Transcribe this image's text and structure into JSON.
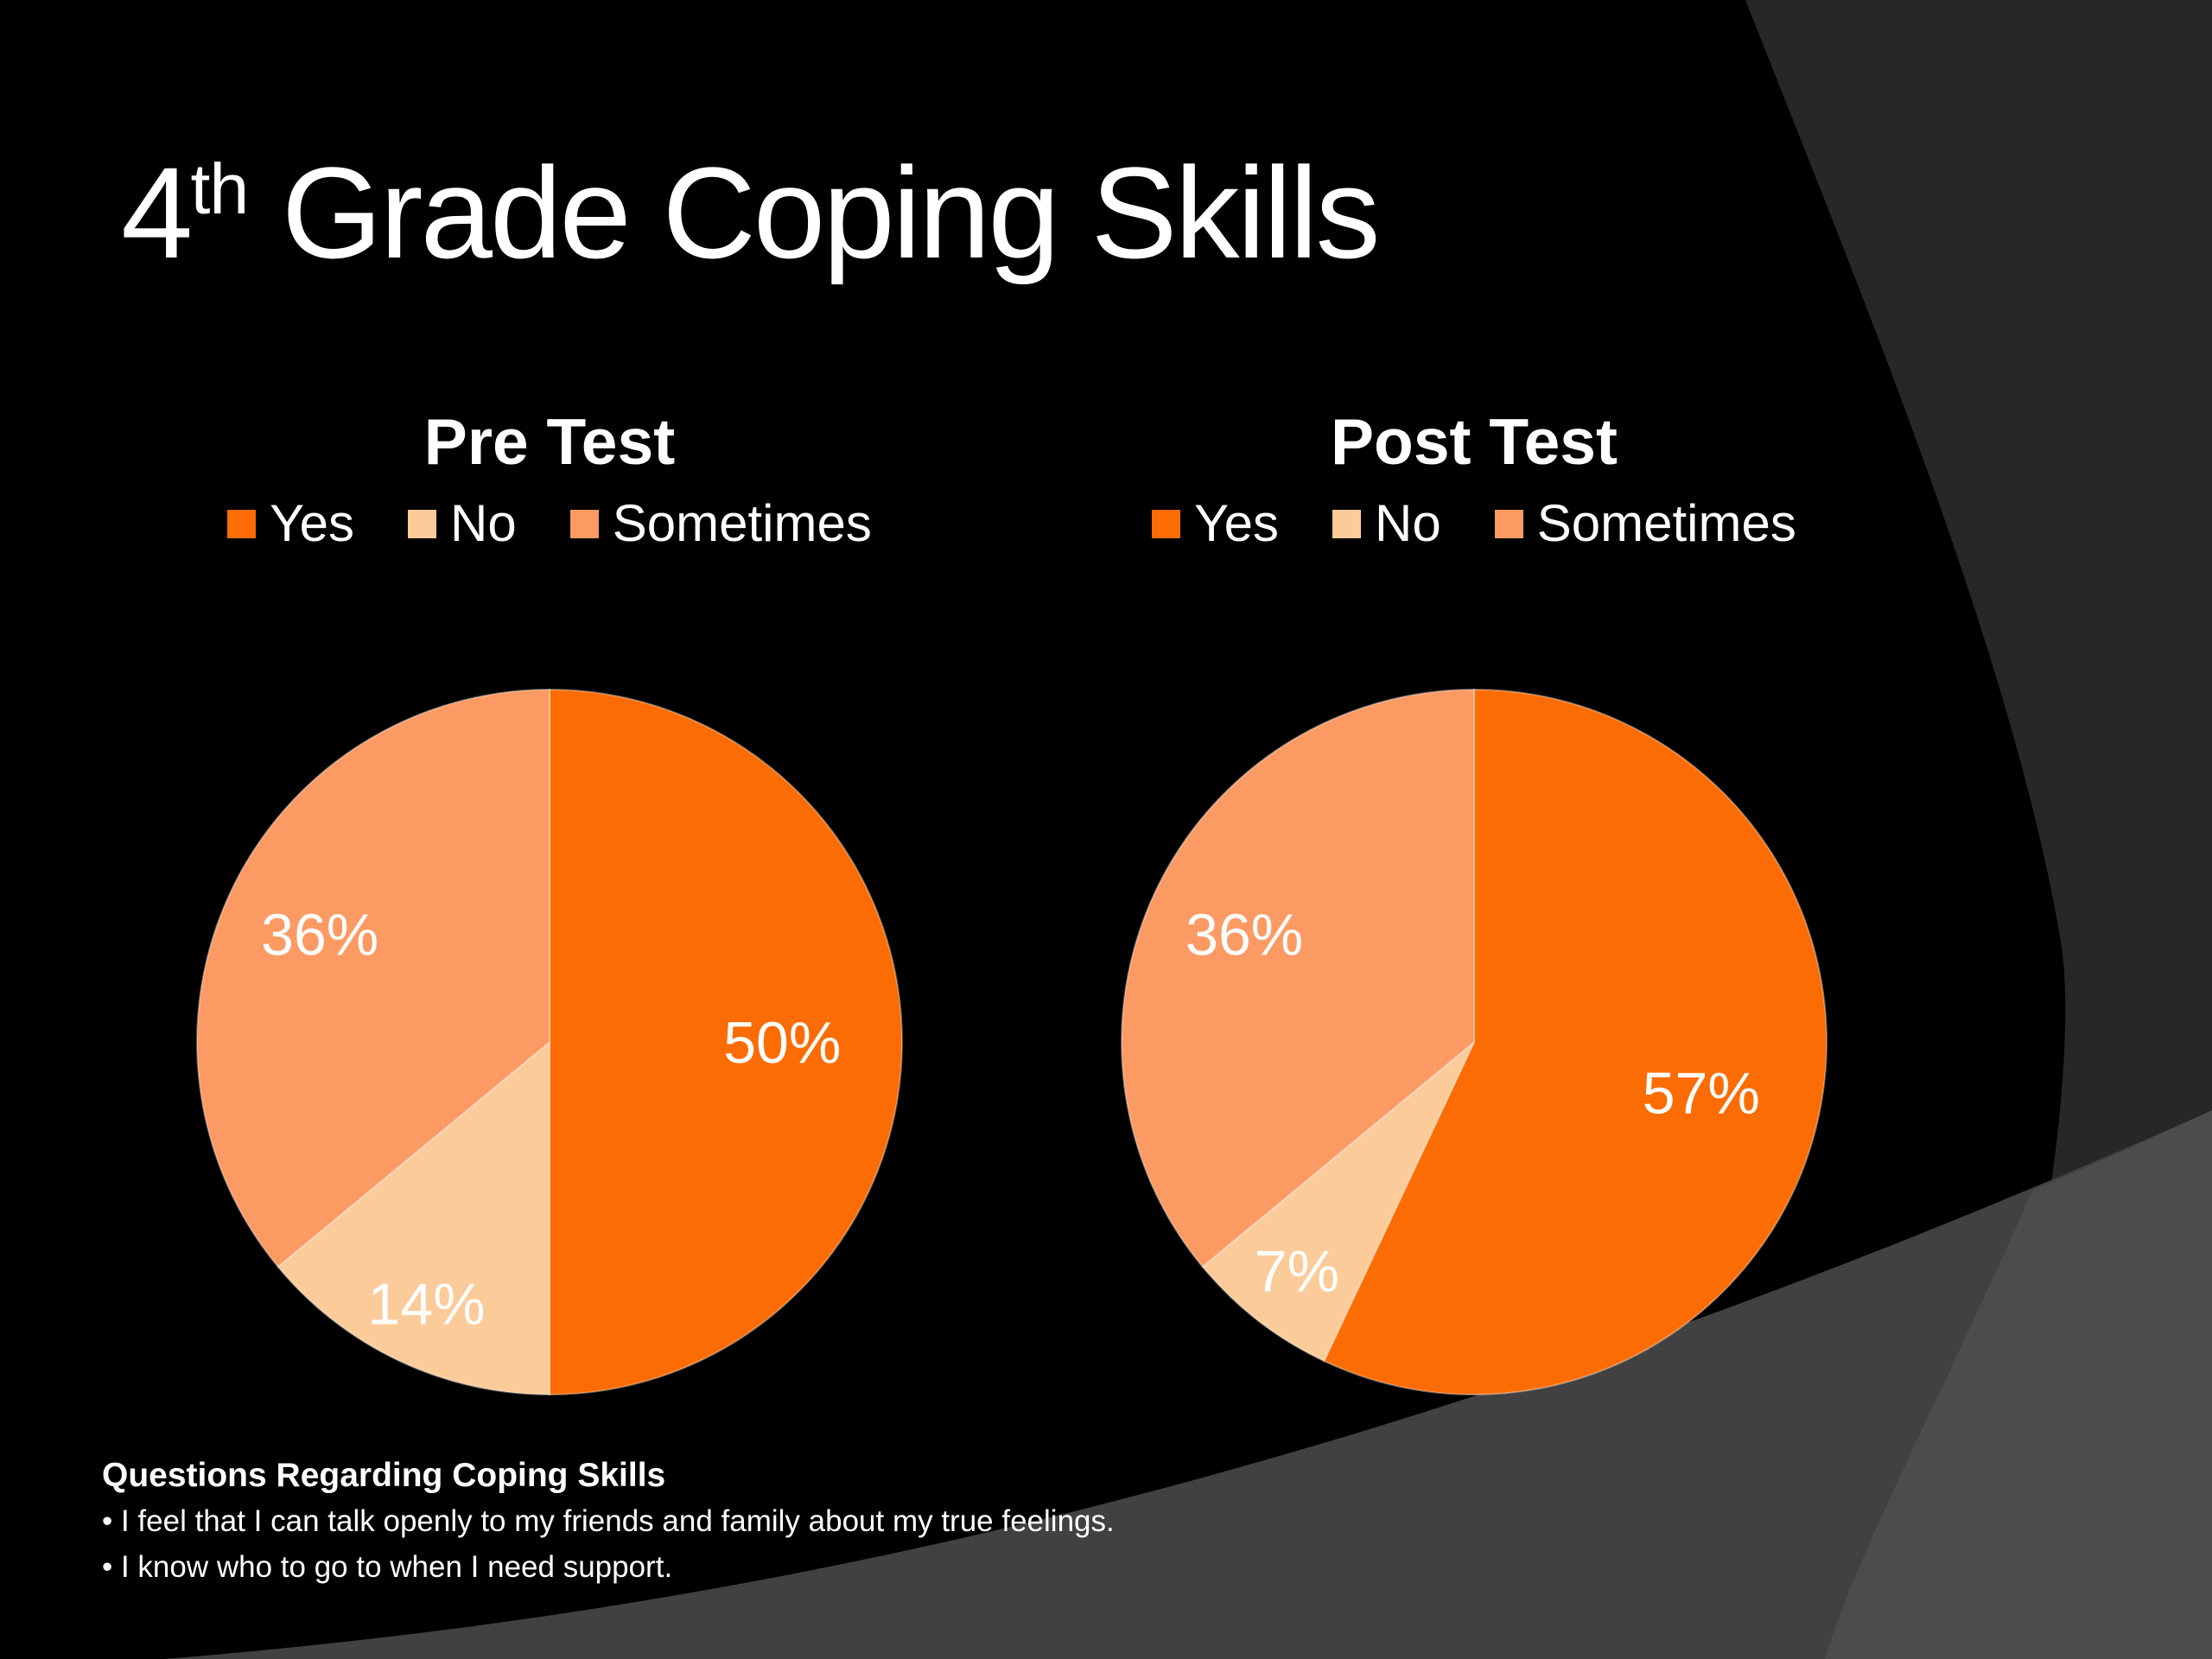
{
  "slide": {
    "title": {
      "prefix": "4",
      "superscript": "th",
      "rest": " Grade Coping Skills"
    },
    "footer": {
      "heading": "Questions Regarding Coping Skills",
      "bullets": [
        "• I feel that I can talk openly to my friends and family about my true feelings.",
        "• I know who to go to when I need support."
      ]
    }
  },
  "colors": {
    "background": "#000000",
    "corner_gray": "#272727",
    "band_gray": "#414141",
    "band_gray_light": "#4C4C4C",
    "text": "#FFFFFF",
    "yes": "#FC6C04",
    "no": "#FBCB99",
    "sometimes": "#FC9A64"
  },
  "chart_data": [
    {
      "type": "pie",
      "title": "Pre Test",
      "categories": [
        "Yes",
        "No",
        "Sometimes"
      ],
      "values": [
        50,
        14,
        36
      ],
      "labels": [
        "50%",
        "14%",
        "36%"
      ],
      "colors": [
        "#FC6C04",
        "#FBCB99",
        "#FC9A64"
      ],
      "start_angle_deg": 0,
      "direction": "clockwise",
      "legend_position": "top",
      "data_labels": "inside"
    },
    {
      "type": "pie",
      "title": "Post Test",
      "categories": [
        "Yes",
        "No",
        "Sometimes"
      ],
      "values": [
        57,
        7,
        36
      ],
      "labels": [
        "57%",
        "7%",
        "36%"
      ],
      "colors": [
        "#FC6C04",
        "#FBCB99",
        "#FC9A64"
      ],
      "start_angle_deg": 0,
      "direction": "clockwise",
      "legend_position": "top",
      "data_labels": "inside"
    }
  ]
}
